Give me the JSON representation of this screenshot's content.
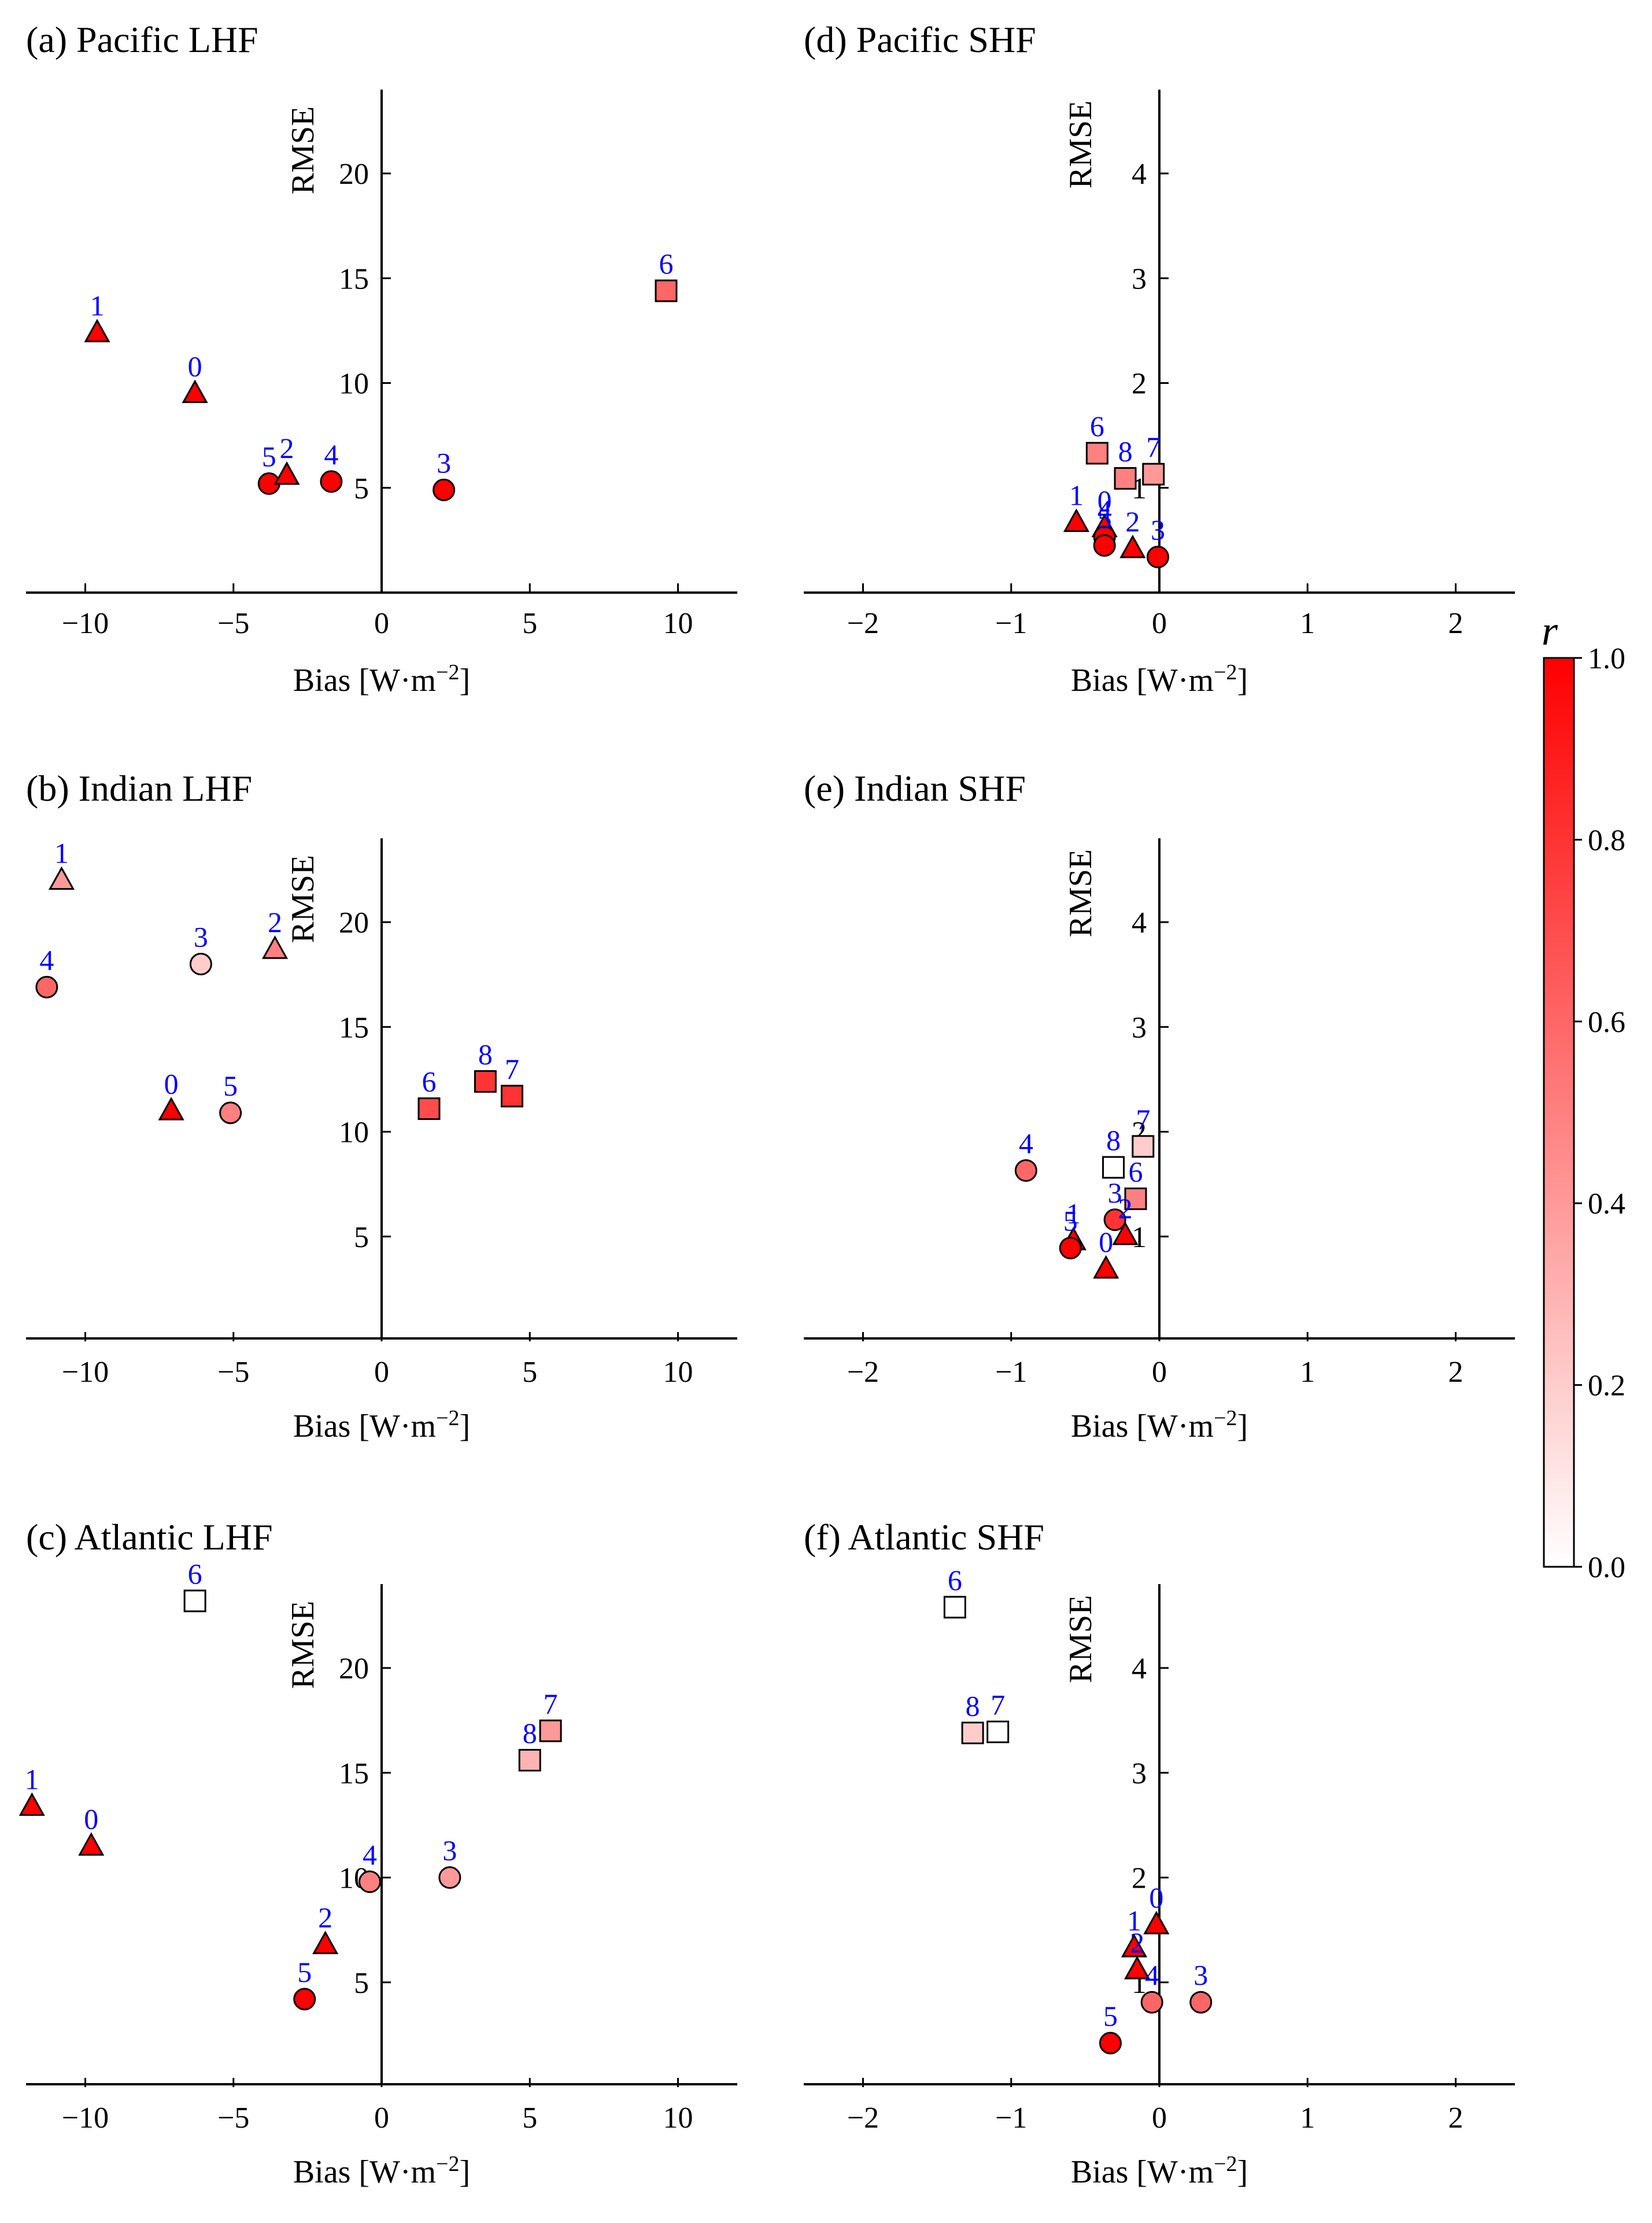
{
  "figure": {
    "colorbar": {
      "label": "r",
      "ticks": [
        "0.0",
        "0.2",
        "0.4",
        "0.6",
        "0.8",
        "1.0"
      ],
      "vmin": 0,
      "vmax": 1,
      "colors": {
        "low": "#ffffff",
        "high": "#ff0000"
      }
    },
    "label_color": "#0000ff"
  },
  "chart_data": [
    {
      "type": "scatter",
      "title": "(a) Pacific LHF",
      "xlabel": "Bias [W·m−2]",
      "ylabel": "RMSE",
      "xlim": [
        -12,
        12
      ],
      "ylim": [
        0,
        24
      ],
      "xticks": [
        -10,
        -5,
        0,
        5,
        10
      ],
      "xticklabels": [
        "−10",
        "−5",
        "0",
        "5",
        "10"
      ],
      "yticks": [
        5,
        10,
        15,
        20
      ],
      "yticklabels": [
        "5",
        "10",
        "15",
        "20"
      ],
      "points": [
        {
          "label": "1",
          "x": -9.6,
          "y": 12.4,
          "marker": "triangle",
          "r": 1.0
        },
        {
          "label": "0",
          "x": -6.3,
          "y": 9.5,
          "marker": "triangle",
          "r": 1.0
        },
        {
          "label": "5",
          "x": -3.8,
          "y": 5.2,
          "marker": "circle",
          "r": 1.0
        },
        {
          "label": "2",
          "x": -3.2,
          "y": 5.6,
          "marker": "triangle",
          "r": 1.0
        },
        {
          "label": "4",
          "x": -1.7,
          "y": 5.3,
          "marker": "circle",
          "r": 1.0
        },
        {
          "label": "3",
          "x": 2.1,
          "y": 4.9,
          "marker": "circle",
          "r": 1.0
        },
        {
          "label": "6",
          "x": 9.6,
          "y": 14.4,
          "marker": "square",
          "r": 0.6
        }
      ]
    },
    {
      "type": "scatter",
      "title": "(b) Indian LHF",
      "xlabel": "Bias [W·m−2]",
      "ylabel": "RMSE",
      "xlim": [
        -12,
        12
      ],
      "ylim": [
        0,
        24
      ],
      "xticks": [
        -10,
        -5,
        0,
        5,
        10
      ],
      "xticklabels": [
        "−10",
        "−5",
        "0",
        "5",
        "10"
      ],
      "yticks": [
        5,
        10,
        15,
        20
      ],
      "yticklabels": [
        "5",
        "10",
        "15",
        "20"
      ],
      "points": [
        {
          "label": "1",
          "x": -10.8,
          "y": 22.0,
          "marker": "triangle",
          "r": 0.4
        },
        {
          "label": "4",
          "x": -11.3,
          "y": 16.9,
          "marker": "circle",
          "r": 0.6
        },
        {
          "label": "3",
          "x": -6.1,
          "y": 18.0,
          "marker": "circle",
          "r": 0.2
        },
        {
          "label": "2",
          "x": -3.6,
          "y": 18.7,
          "marker": "triangle",
          "r": 0.5
        },
        {
          "label": "0",
          "x": -7.1,
          "y": 11.0,
          "marker": "triangle",
          "r": 1.0
        },
        {
          "label": "5",
          "x": -5.1,
          "y": 10.9,
          "marker": "circle",
          "r": 0.5
        },
        {
          "label": "6",
          "x": 1.6,
          "y": 11.1,
          "marker": "square",
          "r": 0.7
        },
        {
          "label": "8",
          "x": 3.5,
          "y": 12.4,
          "marker": "square",
          "r": 0.8
        },
        {
          "label": "7",
          "x": 4.4,
          "y": 11.7,
          "marker": "square",
          "r": 0.8
        }
      ]
    },
    {
      "type": "scatter",
      "title": "(c) Atlantic LHF",
      "xlabel": "Bias [W·m−2]",
      "ylabel": "RMSE",
      "xlim": [
        -12,
        12
      ],
      "ylim": [
        0,
        24
      ],
      "xticks": [
        -10,
        -5,
        0,
        5,
        10
      ],
      "xticklabels": [
        "−10",
        "−5",
        "0",
        "5",
        "10"
      ],
      "yticks": [
        5,
        10,
        15,
        20
      ],
      "yticklabels": [
        "5",
        "10",
        "15",
        "20"
      ],
      "points": [
        {
          "label": "6",
          "x": -6.3,
          "y": 23.2,
          "marker": "square",
          "r": 0.0
        },
        {
          "label": "1",
          "x": -11.8,
          "y": 13.4,
          "marker": "triangle",
          "r": 1.0
        },
        {
          "label": "0",
          "x": -9.8,
          "y": 11.5,
          "marker": "triangle",
          "r": 1.0
        },
        {
          "label": "4",
          "x": -0.4,
          "y": 9.8,
          "marker": "circle",
          "r": 0.5
        },
        {
          "label": "3",
          "x": 2.3,
          "y": 10.0,
          "marker": "circle",
          "r": 0.4
        },
        {
          "label": "8",
          "x": 5.0,
          "y": 15.6,
          "marker": "square",
          "r": 0.3
        },
        {
          "label": "7",
          "x": 5.7,
          "y": 17.0,
          "marker": "square",
          "r": 0.4
        },
        {
          "label": "2",
          "x": -1.9,
          "y": 6.8,
          "marker": "triangle",
          "r": 1.0
        },
        {
          "label": "5",
          "x": -2.6,
          "y": 4.2,
          "marker": "circle",
          "r": 1.0
        }
      ]
    },
    {
      "type": "scatter",
      "title": "(d) Pacific SHF",
      "xlabel": "Bias [W·m−2]",
      "ylabel": "RMSE",
      "xlim": [
        -2.4,
        2.4
      ],
      "ylim": [
        0,
        4.8
      ],
      "xticks": [
        -2,
        -1,
        0,
        1,
        2
      ],
      "xticklabels": [
        "−2",
        "−1",
        "0",
        "1",
        "2"
      ],
      "yticks": [
        1,
        2,
        3,
        4
      ],
      "yticklabels": [
        "1",
        "2",
        "3",
        "4"
      ],
      "points": [
        {
          "label": "6",
          "x": -0.42,
          "y": 1.33,
          "marker": "square",
          "r": 0.5
        },
        {
          "label": "8",
          "x": -0.23,
          "y": 1.09,
          "marker": "square",
          "r": 0.5
        },
        {
          "label": "7",
          "x": -0.04,
          "y": 1.13,
          "marker": "square",
          "r": 0.4
        },
        {
          "label": "1",
          "x": -0.56,
          "y": 0.67,
          "marker": "triangle",
          "r": 1.0
        },
        {
          "label": "0",
          "x": -0.37,
          "y": 0.62,
          "marker": "triangle",
          "r": 1.0
        },
        {
          "label": "4",
          "x": -0.37,
          "y": 0.53,
          "marker": "circle",
          "r": 1.0
        },
        {
          "label": "5",
          "x": -0.37,
          "y": 0.45,
          "marker": "circle",
          "r": 1.0
        },
        {
          "label": "2",
          "x": -0.18,
          "y": 0.42,
          "marker": "triangle",
          "r": 1.0
        },
        {
          "label": "3",
          "x": -0.01,
          "y": 0.34,
          "marker": "circle",
          "r": 1.0
        }
      ]
    },
    {
      "type": "scatter",
      "title": "(e) Indian SHF",
      "xlabel": "Bias [W·m−2]",
      "ylabel": "RMSE",
      "xlim": [
        -2.4,
        2.4
      ],
      "ylim": [
        0,
        4.8
      ],
      "xticks": [
        -2,
        -1,
        0,
        1,
        2
      ],
      "xticklabels": [
        "−2",
        "−1",
        "0",
        "1",
        "2"
      ],
      "yticks": [
        1,
        2,
        3,
        4
      ],
      "yticklabels": [
        "1",
        "2",
        "3",
        "4"
      ],
      "points": [
        {
          "label": "4",
          "x": -0.9,
          "y": 1.63,
          "marker": "circle",
          "r": 0.6
        },
        {
          "label": "8",
          "x": -0.31,
          "y": 1.66,
          "marker": "square",
          "r": 0.0
        },
        {
          "label": "7",
          "x": -0.11,
          "y": 1.86,
          "marker": "square",
          "r": 0.2
        },
        {
          "label": "6",
          "x": -0.16,
          "y": 1.36,
          "marker": "square",
          "r": 0.5
        },
        {
          "label": "3",
          "x": -0.3,
          "y": 1.16,
          "marker": "circle",
          "r": 0.8
        },
        {
          "label": "2",
          "x": -0.23,
          "y": 1.01,
          "marker": "triangle",
          "r": 1.0
        },
        {
          "label": "1",
          "x": -0.58,
          "y": 0.96,
          "marker": "triangle",
          "r": 1.0
        },
        {
          "label": "5",
          "x": -0.6,
          "y": 0.89,
          "marker": "circle",
          "r": 1.0
        },
        {
          "label": "0",
          "x": -0.36,
          "y": 0.69,
          "marker": "triangle",
          "r": 1.0
        }
      ]
    },
    {
      "type": "scatter",
      "title": "(f) Atlantic SHF",
      "xlabel": "Bias [W·m−2]",
      "ylabel": "RMSE",
      "xlim": [
        -2.4,
        2.4
      ],
      "ylim": [
        0,
        4.8
      ],
      "xticks": [
        -2,
        -1,
        0,
        1,
        2
      ],
      "xticklabels": [
        "−2",
        "−1",
        "0",
        "1",
        "2"
      ],
      "yticks": [
        1,
        2,
        3,
        4
      ],
      "yticklabels": [
        "1",
        "2",
        "3",
        "4"
      ],
      "points": [
        {
          "label": "6",
          "x": -1.38,
          "y": 4.58,
          "marker": "square",
          "r": 0.0
        },
        {
          "label": "8",
          "x": -1.26,
          "y": 3.38,
          "marker": "square",
          "r": 0.2
        },
        {
          "label": "7",
          "x": -1.09,
          "y": 3.39,
          "marker": "square",
          "r": 0.0
        },
        {
          "label": "0",
          "x": -0.02,
          "y": 1.55,
          "marker": "triangle",
          "r": 1.0
        },
        {
          "label": "1",
          "x": -0.17,
          "y": 1.33,
          "marker": "triangle",
          "r": 1.0
        },
        {
          "label": "2",
          "x": -0.15,
          "y": 1.12,
          "marker": "triangle",
          "r": 1.0
        },
        {
          "label": "4",
          "x": -0.05,
          "y": 0.81,
          "marker": "circle",
          "r": 0.6
        },
        {
          "label": "3",
          "x": 0.28,
          "y": 0.81,
          "marker": "circle",
          "r": 0.6
        },
        {
          "label": "5",
          "x": -0.33,
          "y": 0.42,
          "marker": "circle",
          "r": 1.0
        }
      ]
    }
  ]
}
